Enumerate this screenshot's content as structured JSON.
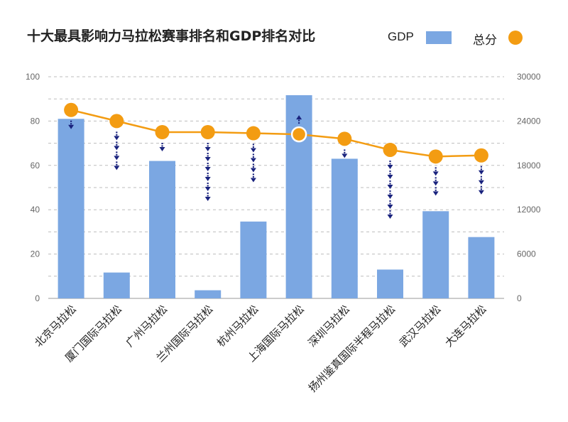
{
  "chart_data": {
    "type": "bar",
    "title": "十大最具影响力马拉松赛事排名和GDP排名对比",
    "categories": [
      "北京马拉松",
      "厦门国际马拉松",
      "广州马拉松",
      "兰州国际马拉松",
      "杭州马拉松",
      "上海国际马拉松",
      "深圳马拉松",
      "扬州鉴真国际半程马拉松",
      "武汉马拉松",
      "大连马拉松"
    ],
    "series": [
      {
        "name": "GDP",
        "axis": "right",
        "type": "bar",
        "color": "#7ba7e2",
        "values": [
          24300,
          3500,
          18600,
          1100,
          10400,
          27500,
          18900,
          3900,
          11800,
          8300
        ]
      },
      {
        "name": "总分",
        "axis": "left",
        "type": "line",
        "color": "#f39c12",
        "values": [
          85,
          80,
          75,
          75,
          74.5,
          74,
          72,
          67,
          64,
          64.5
        ]
      }
    ],
    "left_axis": {
      "ylim": [
        0,
        100
      ],
      "ticks": [
        "0",
        "20",
        "40",
        "60",
        "80",
        "100"
      ]
    },
    "right_axis": {
      "ylim": [
        0,
        30000
      ],
      "ticks": [
        "0",
        "6000",
        "12000",
        "18000",
        "24000",
        "30000"
      ]
    },
    "rank_change_arrows": [
      1,
      4,
      1,
      6,
      4,
      -1,
      1,
      6,
      3,
      3
    ],
    "legend": {
      "position": "top-right",
      "entries": [
        "GDP",
        "总分"
      ]
    },
    "grid": true
  }
}
